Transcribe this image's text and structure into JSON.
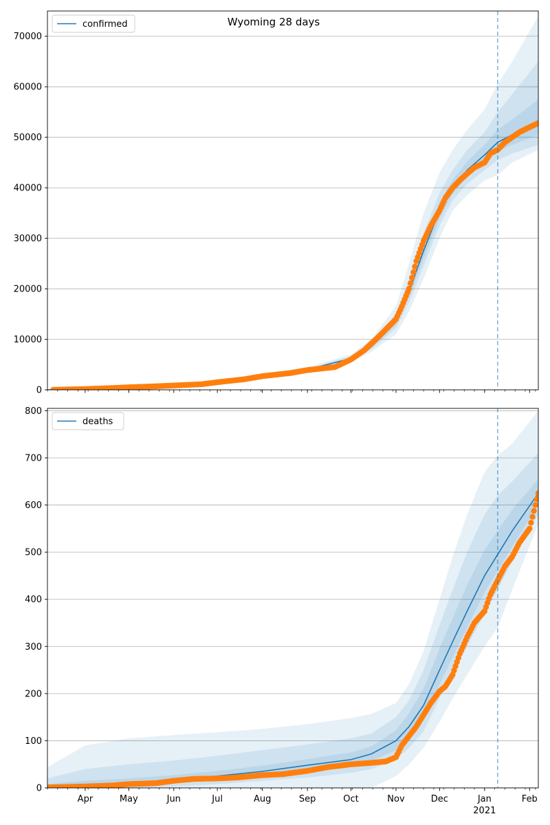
{
  "title": "Wyoming 28 days",
  "colors": {
    "model": "#1f77b4",
    "observed": "#ff7f0e",
    "band": "#1f77b4",
    "grid": "#b0b0b0",
    "forecast_line": "#1f77b4"
  },
  "x_axis": {
    "start": "2020-03-06",
    "end": "2021-02-07",
    "month_labels": [
      {
        "date": "2020-04-01",
        "label": "Apr"
      },
      {
        "date": "2020-05-01",
        "label": "May"
      },
      {
        "date": "2020-06-01",
        "label": "Jun"
      },
      {
        "date": "2020-07-01",
        "label": "Jul"
      },
      {
        "date": "2020-08-01",
        "label": "Aug"
      },
      {
        "date": "2020-09-01",
        "label": "Sep"
      },
      {
        "date": "2020-10-01",
        "label": "Oct"
      },
      {
        "date": "2020-11-01",
        "label": "Nov"
      },
      {
        "date": "2020-12-01",
        "label": "Dec"
      },
      {
        "date": "2021-01-01",
        "label": "Jan"
      },
      {
        "date": "2021-02-01",
        "label": "Feb"
      }
    ],
    "year_label": {
      "date": "2021-01-01",
      "label": "2021"
    },
    "forecast_start": "2021-01-10"
  },
  "chart_data": [
    {
      "type": "line",
      "legend": "confirmed",
      "legend_position": "top-left",
      "grid": "horizontal",
      "ylim": [
        0,
        75000
      ],
      "yticks": [
        0,
        10000,
        20000,
        30000,
        40000,
        50000,
        60000,
        70000
      ],
      "model": {
        "x": [
          "2020-03-06",
          "2020-04-01",
          "2020-05-01",
          "2020-06-01",
          "2020-07-01",
          "2020-08-01",
          "2020-09-01",
          "2020-10-01",
          "2020-10-15",
          "2020-11-01",
          "2020-11-10",
          "2020-11-20",
          "2020-12-01",
          "2020-12-10",
          "2020-12-20",
          "2021-01-01",
          "2021-01-10",
          "2021-01-20",
          "2021-02-07"
        ],
        "y": [
          0,
          150,
          500,
          850,
          1500,
          2800,
          4000,
          6200,
          8500,
          13500,
          19500,
          27500,
          35500,
          40000,
          43500,
          46500,
          49000,
          50500,
          53000
        ]
      },
      "bands": [
        {
          "level": "outer",
          "lower": [
            0,
            100,
            400,
            700,
            1300,
            2500,
            3600,
            5500,
            7500,
            11000,
            15500,
            22000,
            30000,
            35500,
            38500,
            41500,
            42500,
            45000,
            47500
          ],
          "upper": [
            0,
            250,
            700,
            1100,
            1800,
            3200,
            4500,
            7000,
            10000,
            16500,
            25000,
            35000,
            43000,
            47500,
            51500,
            55500,
            60500,
            65000,
            74000
          ]
        },
        {
          "level": "middle",
          "lower": [
            0,
            120,
            450,
            780,
            1400,
            2650,
            3800,
            5800,
            8000,
            12200,
            17300,
            24500,
            32500,
            37500,
            40800,
            43500,
            45500,
            46800,
            48500
          ],
          "upper": [
            0,
            200,
            600,
            950,
            1650,
            3000,
            4250,
            6600,
            9200,
            15000,
            22000,
            31000,
            39000,
            43500,
            47500,
            51000,
            55000,
            58500,
            65000
          ]
        },
        {
          "level": "inner",
          "lower": [
            0,
            140,
            480,
            820,
            1460,
            2740,
            3920,
            6000,
            8300,
            12900,
            18500,
            26000,
            34000,
            38800,
            42200,
            45000,
            47200,
            48500,
            50500
          ],
          "upper": [
            0,
            170,
            540,
            900,
            1560,
            2880,
            4100,
            6400,
            8800,
            14200,
            20700,
            29000,
            37200,
            41500,
            45200,
            48500,
            51500,
            53500,
            57500
          ]
        }
      ],
      "observed": {
        "x": [
          "2020-03-10",
          "2020-04-01",
          "2020-04-20",
          "2020-05-01",
          "2020-05-20",
          "2020-06-01",
          "2020-06-20",
          "2020-07-01",
          "2020-07-20",
          "2020-08-01",
          "2020-08-20",
          "2020-09-01",
          "2020-09-20",
          "2020-10-01",
          "2020-10-10",
          "2020-10-20",
          "2020-11-01",
          "2020-11-05",
          "2020-11-10",
          "2020-11-15",
          "2020-11-20",
          "2020-11-25",
          "2020-12-01",
          "2020-12-05",
          "2020-12-10",
          "2020-12-15",
          "2020-12-20",
          "2020-12-25",
          "2021-01-01",
          "2021-01-05",
          "2021-01-10",
          "2021-01-15",
          "2021-01-20",
          "2021-01-25",
          "2021-02-01",
          "2021-02-07"
        ],
        "y": [
          0,
          150,
          350,
          500,
          700,
          850,
          1100,
          1500,
          2100,
          2700,
          3300,
          3900,
          4500,
          6000,
          7800,
          10500,
          14000,
          16500,
          20000,
          25500,
          29500,
          32500,
          35500,
          38000,
          40000,
          41500,
          42800,
          44000,
          45000,
          46800,
          47500,
          49000,
          50000,
          51000,
          52000,
          52800
        ]
      }
    },
    {
      "type": "line",
      "legend": "deaths",
      "legend_position": "top-left",
      "grid": "horizontal",
      "ylim": [
        0,
        805
      ],
      "yticks": [
        0,
        100,
        200,
        300,
        400,
        500,
        600,
        700,
        800
      ],
      "model": {
        "x": [
          "2020-03-06",
          "2020-04-01",
          "2020-05-01",
          "2020-06-01",
          "2020-07-01",
          "2020-08-01",
          "2020-09-01",
          "2020-10-01",
          "2020-10-15",
          "2020-11-01",
          "2020-11-10",
          "2020-11-20",
          "2020-12-01",
          "2020-12-10",
          "2020-12-20",
          "2021-01-01",
          "2021-01-10",
          "2021-01-20",
          "2021-02-07"
        ],
        "y": [
          0,
          5,
          10,
          17,
          25,
          35,
          48,
          60,
          72,
          100,
          130,
          175,
          250,
          310,
          375,
          450,
          495,
          545,
          625
        ]
      },
      "bands": [
        {
          "level": "outer",
          "lower": [
            0,
            0,
            0,
            0,
            0,
            0,
            0,
            0,
            0,
            25,
            50,
            85,
            140,
            190,
            240,
            300,
            340,
            420,
            560
          ],
          "upper": [
            44,
            90,
            105,
            112,
            118,
            125,
            135,
            148,
            157,
            180,
            220,
            290,
            400,
            490,
            580,
            670,
            705,
            730,
            800
          ]
        },
        {
          "level": "middle",
          "lower": [
            0,
            0,
            0,
            3,
            8,
            15,
            22,
            32,
            40,
            60,
            85,
            120,
            190,
            240,
            300,
            370,
            420,
            480,
            580
          ],
          "upper": [
            20,
            40,
            50,
            58,
            68,
            80,
            92,
            105,
            115,
            150,
            185,
            250,
            345,
            420,
            500,
            580,
            620,
            650,
            710
          ]
        },
        {
          "level": "inner",
          "lower": [
            0,
            2,
            5,
            10,
            16,
            25,
            35,
            47,
            57,
            80,
            108,
            150,
            220,
            277,
            340,
            415,
            460,
            512,
            600
          ],
          "upper": [
            8,
            15,
            20,
            27,
            36,
            47,
            61,
            75,
            88,
            122,
            158,
            210,
            295,
            360,
            430,
            505,
            545,
            590,
            655
          ]
        }
      ],
      "observed": {
        "x": [
          "2020-03-06",
          "2020-04-01",
          "2020-04-20",
          "2020-05-01",
          "2020-05-20",
          "2020-06-01",
          "2020-06-15",
          "2020-07-01",
          "2020-07-15",
          "2020-08-01",
          "2020-08-15",
          "2020-09-01",
          "2020-09-15",
          "2020-10-01",
          "2020-10-15",
          "2020-10-25",
          "2020-11-01",
          "2020-11-05",
          "2020-11-10",
          "2020-11-15",
          "2020-11-20",
          "2020-11-25",
          "2020-12-01",
          "2020-12-05",
          "2020-12-10",
          "2020-12-15",
          "2020-12-20",
          "2020-12-25",
          "2021-01-01",
          "2021-01-05",
          "2021-01-10",
          "2021-01-15",
          "2021-01-20",
          "2021-01-25",
          "2021-02-01",
          "2021-02-07"
        ],
        "y": [
          1,
          3,
          5,
          8,
          10,
          15,
          19,
          20,
          22,
          27,
          29,
          36,
          44,
          50,
          53,
          56,
          65,
          90,
          110,
          130,
          155,
          180,
          205,
          215,
          240,
          285,
          320,
          350,
          375,
          410,
          440,
          470,
          490,
          520,
          550,
          625
        ]
      }
    }
  ]
}
